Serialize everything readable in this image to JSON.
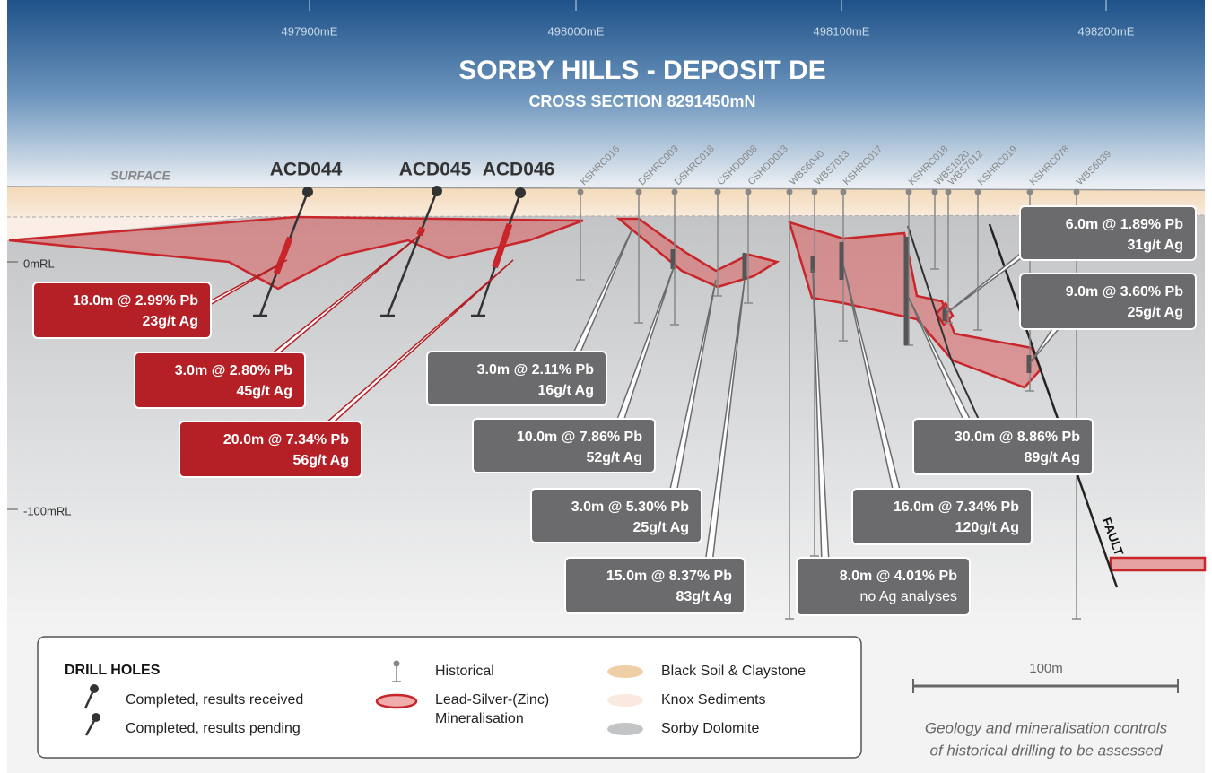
{
  "title": "SORBY HILLS -  DEPOSIT DE",
  "subtitle": "CROSS SECTION 8291450mN",
  "eastings": [
    "497900mE",
    "498000mE",
    "498100mE",
    "498200mE"
  ],
  "elevations": [
    "0mRL",
    "-100mRL"
  ],
  "surface_label": "SURFACE",
  "fault_label": "FAULT",
  "drill_holes": [
    "ACD044",
    "ACD045",
    "ACD046"
  ],
  "historical_holes": [
    "KSHRC016",
    "DSHRC003",
    "DSHRC018",
    "CSHDD008",
    "CSHDD013",
    "WBS6040",
    "WBS7013",
    "KSHRC017",
    "KSHRC018",
    "WBS1020",
    "WBS7012",
    "KSHRC019",
    "KSHRC078",
    "WBS6039"
  ],
  "callouts": [
    {
      "grade": "18.0m @ 2.99% Pb",
      "silver": "23g/t Ag"
    },
    {
      "grade": "3.0m @ 2.80% Pb",
      "silver": "45g/t Ag"
    },
    {
      "grade": "20.0m @ 7.34% Pb",
      "silver": "56g/t Ag"
    },
    {
      "grade": "3.0m @ 2.11% Pb",
      "silver": "16g/t Ag"
    },
    {
      "grade": "10.0m @ 7.86% Pb",
      "silver": "52g/t Ag"
    },
    {
      "grade": "3.0m @ 5.30% Pb",
      "silver": "25g/t Ag"
    },
    {
      "grade": "15.0m @ 8.37% Pb",
      "silver": "83g/t Ag"
    },
    {
      "grade": "8.0m @ 4.01% Pb",
      "silver": "no Ag analyses"
    },
    {
      "grade": "16.0m @ 7.34% Pb",
      "silver": "120g/t Ag"
    },
    {
      "grade": "30.0m @ 8.86% Pb",
      "silver": "89g/t Ag"
    },
    {
      "grade": "6.0m @ 1.89% Pb",
      "silver": "31g/t Ag"
    },
    {
      "grade": "9.0m @ 3.60% Pb",
      "silver": "25g/t Ag"
    }
  ],
  "legend": {
    "title": "DRILL HOLES",
    "completed_received": "Completed, results received",
    "completed_pending": "Completed, results pending",
    "historical": "Historical",
    "mineralisation": [
      "Lead-Silver-(Zinc)",
      "Mineralisation"
    ],
    "black_soil": "Black Soil & Claystone",
    "knox": "Knox Sediments",
    "dolomite": "Sorby Dolomite"
  },
  "scale_bar": "100m",
  "note": [
    "Geology and mineralisation controls",
    "of historical drilling to be assessed"
  ]
}
